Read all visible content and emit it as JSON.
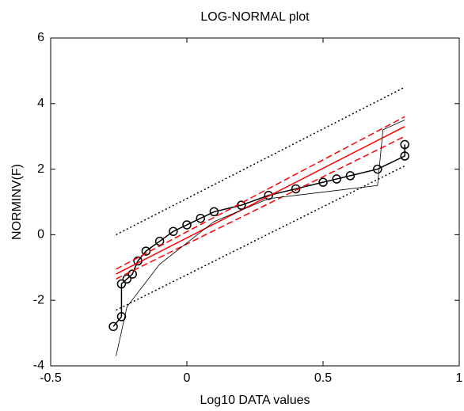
{
  "chart_data": {
    "type": "line",
    "title": "LOG-NORMAL plot",
    "x_label": "Log10 DATA values",
    "y_label": "NORMINV(F)",
    "xlim": [
      -0.5,
      1
    ],
    "xticks": [
      -0.5,
      0,
      0.5,
      1
    ],
    "ylim": [
      -4,
      6
    ],
    "yticks": [
      -4,
      -2,
      0,
      2,
      4,
      6
    ],
    "series": [
      {
        "color": "#000000",
        "style": "solid",
        "marker": "circle",
        "x": [
          -0.27,
          -0.24,
          -0.24,
          -0.22,
          -0.2,
          -0.18,
          -0.15,
          -0.1,
          -0.05,
          0,
          0.05,
          0.1,
          0.2,
          0.3,
          0.4,
          0.5,
          0.55,
          0.6,
          0.7,
          0.8,
          0.8
        ],
        "values": [
          -2.8,
          -2.5,
          -1.5,
          -1.35,
          -1.2,
          -0.8,
          -0.5,
          -0.2,
          0.1,
          0.3,
          0.5,
          0.7,
          0.9,
          1.2,
          1.4,
          1.6,
          1.7,
          1.8,
          2.0,
          2.4,
          2.75
        ]
      },
      {
        "color": "#ff0000",
        "style": "solid",
        "x": [
          -0.26,
          0.8
        ],
        "values": [
          -1.2,
          3.3
        ]
      },
      {
        "color": "#ff0000",
        "style": "dashed",
        "x": [
          -0.26,
          0.8
        ],
        "values": [
          -1.05,
          3.6
        ]
      },
      {
        "color": "#ff0000",
        "style": "dashed",
        "x": [
          -0.26,
          0.8
        ],
        "values": [
          -1.35,
          3.0
        ]
      },
      {
        "color": "#000000",
        "style": "dotted",
        "x": [
          -0.26,
          0.8
        ],
        "values": [
          0,
          4.5
        ]
      },
      {
        "color": "#000000",
        "style": "dotted",
        "x": [
          -0.26,
          0.8
        ],
        "values": [
          -2.3,
          2.1
        ]
      },
      {
        "color": "#000000",
        "style": "thin",
        "x": [
          -0.26,
          -0.22,
          -0.1,
          0.1,
          0.3,
          0.5,
          0.7,
          0.72,
          0.8
        ],
        "values": [
          -3.7,
          -2.2,
          -0.9,
          0.4,
          1.1,
          1.3,
          1.5,
          3.2,
          3.5
        ]
      }
    ]
  }
}
